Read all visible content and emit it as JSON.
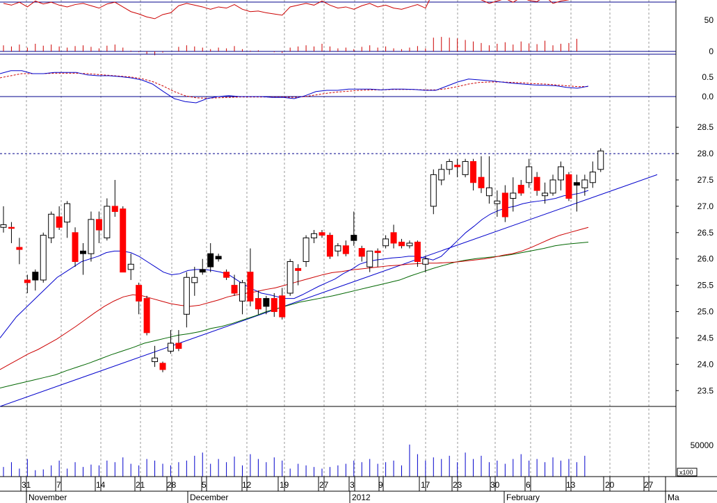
{
  "chart_data": {
    "type": "candlestick",
    "colors": {
      "up_fill": "#ffffff",
      "down_fill": "#ff0000",
      "black_fill": "#000000",
      "ma_short": "#0000cc",
      "ma_mid": "#cc0000",
      "ma_long": "#006600",
      "trendline": "#0000cc",
      "rsi_line": "#cc0000",
      "macd_line": "#0000cc",
      "macd_signal": "#cc0000",
      "volume": "#0000cc",
      "grid": "#999999",
      "axis_line": "#00008b"
    },
    "y_ticks": [
      "28.5",
      "28.0",
      "27.5",
      "27.0",
      "26.5",
      "26.0",
      "25.5",
      "25.0",
      "24.5",
      "24.0",
      "23.5"
    ],
    "price_ylim": [
      23.2,
      28.7
    ],
    "resistance_level": 28.0,
    "volume_tick": "50000",
    "volume_unit": "x100",
    "rsi_ticks": [
      "50",
      "0"
    ],
    "macd_ticks": [
      "0.5",
      "0.0"
    ],
    "x_day_ticks": [
      "31",
      "7",
      "14",
      "21",
      "28",
      "5",
      "12",
      "19",
      "27",
      "3",
      "9",
      "17",
      "23",
      "30",
      "6",
      "13",
      "20",
      "27"
    ],
    "x_month_ticks": [
      "November",
      "December",
      "2012",
      "February",
      "Ma"
    ],
    "candles": [
      {
        "o": 26.6,
        "h": 27.0,
        "l": 26.5,
        "c": 26.65,
        "col": "w"
      },
      {
        "o": 26.6,
        "h": 26.7,
        "l": 26.3,
        "c": 26.58,
        "col": "r"
      },
      {
        "o": 26.22,
        "h": 26.4,
        "l": 25.9,
        "c": 26.18,
        "col": "r"
      },
      {
        "o": 25.6,
        "h": 25.7,
        "l": 25.35,
        "c": 25.55,
        "col": "r"
      },
      {
        "o": 25.6,
        "h": 25.8,
        "l": 25.4,
        "c": 25.75,
        "col": "b"
      },
      {
        "o": 25.6,
        "h": 26.5,
        "l": 25.55,
        "c": 26.45,
        "col": "w"
      },
      {
        "o": 26.4,
        "h": 26.9,
        "l": 26.3,
        "c": 26.85,
        "col": "w"
      },
      {
        "o": 26.8,
        "h": 27.0,
        "l": 26.55,
        "c": 26.6,
        "col": "r"
      },
      {
        "o": 26.7,
        "h": 27.1,
        "l": 26.4,
        "c": 27.05,
        "col": "w"
      },
      {
        "o": 26.5,
        "h": 26.6,
        "l": 25.85,
        "c": 25.95,
        "col": "r"
      },
      {
        "o": 26.1,
        "h": 26.3,
        "l": 25.7,
        "c": 26.15,
        "col": "b"
      },
      {
        "o": 26.1,
        "h": 26.9,
        "l": 25.95,
        "c": 26.75,
        "col": "w"
      },
      {
        "o": 26.75,
        "h": 26.9,
        "l": 26.3,
        "c": 26.55,
        "col": "r"
      },
      {
        "o": 26.4,
        "h": 27.15,
        "l": 26.35,
        "c": 27.0,
        "col": "w"
      },
      {
        "o": 27.0,
        "h": 27.5,
        "l": 26.8,
        "c": 26.9,
        "col": "r"
      },
      {
        "o": 26.95,
        "h": 27.0,
        "l": 25.75,
        "c": 25.75,
        "col": "r"
      },
      {
        "o": 25.8,
        "h": 26.1,
        "l": 25.6,
        "c": 25.9,
        "col": "w"
      },
      {
        "o": 25.5,
        "h": 25.55,
        "l": 24.95,
        "c": 25.2,
        "col": "r"
      },
      {
        "o": 25.25,
        "h": 25.3,
        "l": 24.55,
        "c": 24.6,
        "col": "r"
      },
      {
        "o": 24.05,
        "h": 24.35,
        "l": 23.95,
        "c": 24.12,
        "col": "w"
      },
      {
        "o": 24.02,
        "h": 24.05,
        "l": 23.85,
        "c": 23.9,
        "col": "r"
      },
      {
        "o": 24.25,
        "h": 24.65,
        "l": 24.2,
        "c": 24.4,
        "col": "w"
      },
      {
        "o": 24.4,
        "h": 24.65,
        "l": 24.25,
        "c": 24.3,
        "col": "r"
      },
      {
        "o": 24.95,
        "h": 25.75,
        "l": 24.7,
        "c": 25.65,
        "col": "w"
      },
      {
        "o": 25.55,
        "h": 25.85,
        "l": 25.3,
        "c": 25.65,
        "col": "w"
      },
      {
        "o": 25.75,
        "h": 26.0,
        "l": 25.7,
        "c": 25.8,
        "col": "b"
      },
      {
        "o": 25.85,
        "h": 26.3,
        "l": 25.75,
        "c": 26.1,
        "col": "b"
      },
      {
        "o": 26.05,
        "h": 26.1,
        "l": 25.95,
        "c": 26.0,
        "col": "b"
      },
      {
        "o": 25.75,
        "h": 25.8,
        "l": 25.6,
        "c": 25.65,
        "col": "r"
      },
      {
        "o": 25.5,
        "h": 25.7,
        "l": 25.3,
        "c": 25.35,
        "col": "r"
      },
      {
        "o": 25.2,
        "h": 25.6,
        "l": 24.95,
        "c": 25.55,
        "col": "w"
      },
      {
        "o": 25.75,
        "h": 26.2,
        "l": 25.1,
        "c": 25.2,
        "col": "r"
      },
      {
        "o": 25.25,
        "h": 25.4,
        "l": 24.95,
        "c": 25.05,
        "col": "r"
      },
      {
        "o": 25.1,
        "h": 25.3,
        "l": 24.95,
        "c": 25.25,
        "col": "b"
      },
      {
        "o": 25.25,
        "h": 25.35,
        "l": 24.9,
        "c": 25.0,
        "col": "r"
      },
      {
        "o": 25.3,
        "h": 25.45,
        "l": 24.85,
        "c": 24.9,
        "col": "r"
      },
      {
        "o": 25.35,
        "h": 26.0,
        "l": 25.3,
        "c": 25.95,
        "col": "w"
      },
      {
        "o": 25.82,
        "h": 25.9,
        "l": 25.5,
        "c": 25.78,
        "col": "r"
      },
      {
        "o": 25.95,
        "h": 26.45,
        "l": 25.85,
        "c": 26.4,
        "col": "w"
      },
      {
        "o": 26.4,
        "h": 26.55,
        "l": 26.3,
        "c": 26.48,
        "col": "w"
      },
      {
        "o": 26.5,
        "h": 26.55,
        "l": 26.4,
        "c": 26.45,
        "col": "r"
      },
      {
        "o": 26.45,
        "h": 26.5,
        "l": 26.0,
        "c": 26.05,
        "col": "r"
      },
      {
        "o": 26.15,
        "h": 26.3,
        "l": 26.05,
        "c": 26.25,
        "col": "w"
      },
      {
        "o": 26.25,
        "h": 26.35,
        "l": 26.05,
        "c": 26.1,
        "col": "r"
      },
      {
        "o": 26.35,
        "h": 26.9,
        "l": 26.25,
        "c": 26.45,
        "col": "b"
      },
      {
        "o": 26.2,
        "h": 26.25,
        "l": 25.95,
        "c": 26.05,
        "col": "r"
      },
      {
        "o": 25.85,
        "h": 26.15,
        "l": 25.75,
        "c": 26.15,
        "col": "w"
      },
      {
        "o": 26.15,
        "h": 26.2,
        "l": 25.85,
        "c": 26.12,
        "col": "r"
      },
      {
        "o": 26.25,
        "h": 26.45,
        "l": 26.2,
        "c": 26.38,
        "col": "w"
      },
      {
        "o": 26.5,
        "h": 26.65,
        "l": 26.2,
        "c": 26.3,
        "col": "r"
      },
      {
        "o": 26.32,
        "h": 26.38,
        "l": 26.2,
        "c": 26.25,
        "col": "r"
      },
      {
        "o": 26.25,
        "h": 26.35,
        "l": 26.2,
        "c": 26.3,
        "col": "w"
      },
      {
        "o": 26.32,
        "h": 26.35,
        "l": 25.85,
        "c": 25.95,
        "col": "r"
      },
      {
        "o": 25.9,
        "h": 26.05,
        "l": 25.75,
        "c": 26.0,
        "col": "w"
      },
      {
        "o": 27.0,
        "h": 27.7,
        "l": 26.85,
        "c": 27.6,
        "col": "w"
      },
      {
        "o": 27.5,
        "h": 27.8,
        "l": 27.4,
        "c": 27.7,
        "col": "w"
      },
      {
        "o": 27.7,
        "h": 27.9,
        "l": 27.6,
        "c": 27.85,
        "col": "w"
      },
      {
        "o": 27.78,
        "h": 27.9,
        "l": 27.55,
        "c": 27.75,
        "col": "r"
      },
      {
        "o": 27.6,
        "h": 27.9,
        "l": 27.55,
        "c": 27.85,
        "col": "w"
      },
      {
        "o": 27.85,
        "h": 27.9,
        "l": 27.3,
        "c": 27.45,
        "col": "r"
      },
      {
        "o": 27.55,
        "h": 27.95,
        "l": 27.25,
        "c": 27.35,
        "col": "r"
      },
      {
        "o": 27.35,
        "h": 27.95,
        "l": 27.05,
        "c": 27.2,
        "col": "w"
      },
      {
        "o": 27.1,
        "h": 27.3,
        "l": 26.8,
        "c": 27.05,
        "col": "w"
      },
      {
        "o": 27.25,
        "h": 27.4,
        "l": 26.7,
        "c": 26.8,
        "col": "r"
      },
      {
        "o": 27.15,
        "h": 27.55,
        "l": 26.9,
        "c": 27.25,
        "col": "w"
      },
      {
        "o": 27.4,
        "h": 27.5,
        "l": 27.2,
        "c": 27.25,
        "col": "r"
      },
      {
        "o": 27.45,
        "h": 27.9,
        "l": 27.35,
        "c": 27.75,
        "col": "w"
      },
      {
        "o": 27.55,
        "h": 27.65,
        "l": 27.2,
        "c": 27.3,
        "col": "r"
      },
      {
        "o": 27.25,
        "h": 27.45,
        "l": 27.05,
        "c": 27.2,
        "col": "w"
      },
      {
        "o": 27.25,
        "h": 27.6,
        "l": 27.2,
        "c": 27.5,
        "col": "w"
      },
      {
        "o": 27.5,
        "h": 27.85,
        "l": 27.3,
        "c": 27.75,
        "col": "w"
      },
      {
        "o": 27.6,
        "h": 27.65,
        "l": 27.1,
        "c": 27.15,
        "col": "r"
      },
      {
        "o": 27.4,
        "h": 27.6,
        "l": 26.9,
        "c": 27.45,
        "col": "b"
      },
      {
        "o": 27.35,
        "h": 27.6,
        "l": 27.2,
        "c": 27.5,
        "col": "w"
      },
      {
        "o": 27.45,
        "h": 27.85,
        "l": 27.35,
        "c": 27.65,
        "col": "w"
      },
      {
        "o": 27.7,
        "h": 28.1,
        "l": 27.65,
        "c": 28.05,
        "col": "w"
      }
    ],
    "ma_short": [
      24.5,
      24.7,
      24.9,
      25.05,
      25.2,
      25.35,
      25.5,
      25.65,
      25.75,
      25.85,
      25.95,
      26.0,
      26.05,
      26.12,
      26.15,
      26.15,
      26.12,
      26.05,
      25.95,
      25.85,
      25.75,
      25.7,
      25.72,
      25.78,
      25.8,
      25.8,
      25.78,
      25.75,
      25.7,
      25.6,
      25.5,
      25.42,
      25.35,
      25.32,
      25.28,
      25.25,
      25.25,
      25.32,
      25.4,
      25.48,
      25.55,
      25.62,
      25.72,
      25.8,
      25.9,
      25.95,
      25.98,
      26.0,
      26.02,
      26.03,
      26.05,
      26.05,
      26.02,
      25.98,
      26.05,
      26.2,
      26.35,
      26.5,
      26.62,
      26.75,
      26.85,
      26.92,
      26.97,
      27.0,
      27.05,
      27.08,
      27.1,
      27.12,
      27.15,
      27.2,
      27.22,
      27.25,
      27.3
    ],
    "ma_mid": [
      23.9,
      24.0,
      24.1,
      24.2,
      24.28,
      24.38,
      24.48,
      24.6,
      24.72,
      24.85,
      24.98,
      25.1,
      25.2,
      25.28,
      25.32,
      25.3,
      25.25,
      25.2,
      25.15,
      25.12,
      25.1,
      25.12,
      25.17,
      25.22,
      25.28,
      25.32,
      25.35,
      25.38,
      25.42,
      25.45,
      25.5,
      25.55,
      25.6,
      25.65,
      25.7,
      25.74,
      25.76,
      25.79,
      25.81,
      25.83,
      25.85,
      25.87,
      25.88,
      25.9,
      25.91,
      25.92,
      25.92,
      25.93,
      25.94,
      25.96,
      25.98,
      26.0,
      26.03,
      26.07,
      26.1,
      26.15,
      26.22,
      26.3,
      26.38,
      26.45,
      26.5,
      26.55,
      26.6
    ],
    "ma_long": [
      23.55,
      23.6,
      23.65,
      23.7,
      23.75,
      23.8,
      23.88,
      23.95,
      24.02,
      24.1,
      24.18,
      24.25,
      24.32,
      24.4,
      24.45,
      24.5,
      24.55,
      24.58,
      24.62,
      24.68,
      24.72,
      24.78,
      24.85,
      24.92,
      25.0,
      25.06,
      25.12,
      25.18,
      25.22,
      25.26,
      25.3,
      25.35,
      25.4,
      25.45,
      25.5,
      25.55,
      25.6,
      25.68,
      25.75,
      25.82,
      25.88,
      25.94,
      25.98,
      26.01,
      26.03,
      26.05,
      26.08,
      26.12,
      26.16,
      26.2,
      26.25,
      26.28,
      26.3,
      26.32
    ],
    "trendline": {
      "x1": 0,
      "y1": 23.2,
      "x2": 945,
      "y2": 27.6
    },
    "rsi": [
      58,
      55,
      60,
      52,
      62,
      57,
      60,
      55,
      52,
      56,
      58,
      54,
      50,
      57,
      60,
      52,
      44,
      40,
      35,
      32,
      39,
      42,
      54,
      58,
      55,
      52,
      48,
      52,
      50,
      56,
      48,
      44,
      45,
      42,
      40,
      38,
      52,
      55,
      58,
      55,
      62,
      55,
      50,
      52,
      48,
      54,
      58,
      52,
      55,
      50,
      48,
      52,
      56,
      50,
      78,
      80,
      78,
      76,
      72,
      68,
      64,
      58,
      62,
      66,
      60,
      68,
      63,
      61,
      70,
      58,
      62,
      64,
      75
    ],
    "rsi_ylim": [
      0,
      85
    ],
    "macd": [
      0.55,
      0.62,
      0.62,
      0.55,
      0.55,
      0.58,
      0.58,
      0.58,
      0.52,
      0.5,
      0.5,
      0.48,
      0.45,
      0.4,
      0.3,
      0.12,
      -0.05,
      -0.12,
      -0.15,
      -0.05,
      0.0,
      0.02,
      0.0,
      0.0,
      0.0,
      -0.02,
      -0.02,
      -0.05,
      0.02,
      0.12,
      0.15,
      0.15,
      0.18,
      0.18,
      0.18,
      0.16,
      0.18,
      0.18,
      0.17,
      0.15,
      0.15,
      0.25,
      0.35,
      0.42,
      0.4,
      0.38,
      0.35,
      0.32,
      0.3,
      0.28,
      0.27,
      0.26,
      0.22,
      0.2,
      0.25
    ],
    "macd_signal": [
      0.45,
      0.5,
      0.55,
      0.55,
      0.55,
      0.56,
      0.56,
      0.56,
      0.55,
      0.53,
      0.51,
      0.49,
      0.47,
      0.43,
      0.36,
      0.25,
      0.12,
      0.02,
      -0.03,
      -0.04,
      -0.03,
      -0.02,
      -0.01,
      -0.01,
      -0.01,
      -0.01,
      -0.01,
      -0.02,
      0.0,
      0.04,
      0.08,
      0.11,
      0.13,
      0.15,
      0.16,
      0.16,
      0.17,
      0.17,
      0.17,
      0.16,
      0.16,
      0.19,
      0.24,
      0.3,
      0.34,
      0.35,
      0.35,
      0.34,
      0.33,
      0.31,
      0.3,
      0.28,
      0.26,
      0.24,
      0.24
    ],
    "macd_ylim": [
      -0.2,
      0.8
    ],
    "volume": [
      12,
      18,
      10,
      22,
      8,
      9,
      14,
      20,
      10,
      18,
      12,
      15,
      14,
      20,
      18,
      24,
      16,
      14,
      22,
      20,
      16,
      14,
      18,
      20,
      26,
      30,
      16,
      22,
      18,
      25,
      14,
      28,
      22,
      18,
      24,
      20,
      10,
      16,
      14,
      12,
      10,
      12,
      14,
      16,
      20,
      18,
      22,
      16,
      18,
      20,
      14,
      40,
      28,
      20,
      24,
      22,
      26,
      18,
      30,
      22,
      26,
      18,
      20,
      16,
      22,
      28,
      20,
      22,
      18,
      24,
      20,
      22,
      18,
      26
    ],
    "volume_ylim": [
      0,
      85
    ]
  }
}
